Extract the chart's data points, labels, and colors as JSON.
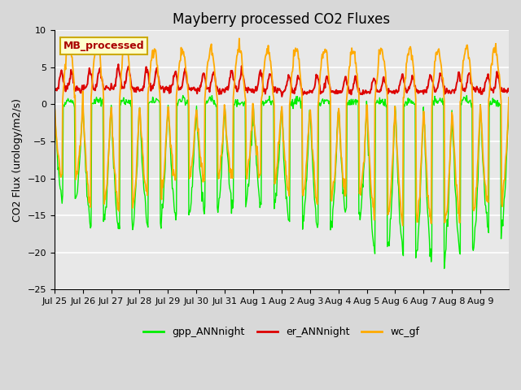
{
  "title": "Mayberry processed CO2 Fluxes",
  "ylabel": "CO2 Flux (urology/m2/s)",
  "ylim": [
    -25,
    10
  ],
  "yticks": [
    -25,
    -20,
    -15,
    -10,
    -5,
    0,
    5,
    10
  ],
  "legend_label": "MB_processed",
  "legend_bg": "#ffffcc",
  "legend_edge": "#ccaa00",
  "legend_text_color": "#aa0000",
  "line_colors": {
    "gpp": "#00ee00",
    "er": "#dd0000",
    "wc": "#ffaa00"
  },
  "line_labels": {
    "gpp": "gpp_ANNnight",
    "er": "er_ANNnight",
    "wc": "wc_gf"
  },
  "fig_bg": "#d8d8d8",
  "plot_bg": "#e8e8e8",
  "n_days": 16,
  "title_fontsize": 12,
  "axis_fontsize": 9,
  "tick_fontsize": 8,
  "legend_fontsize": 9,
  "tick_labels": [
    "Jul 25",
    "Jul 26",
    "Jul 27",
    "Jul 28",
    "Jul 29",
    "Jul 30",
    "Jul 31",
    "Aug 1",
    "Aug 2",
    "Aug 3",
    "Aug 4",
    "Aug 5",
    "Aug 6",
    "Aug 7",
    "Aug 8",
    "Aug 9"
  ]
}
